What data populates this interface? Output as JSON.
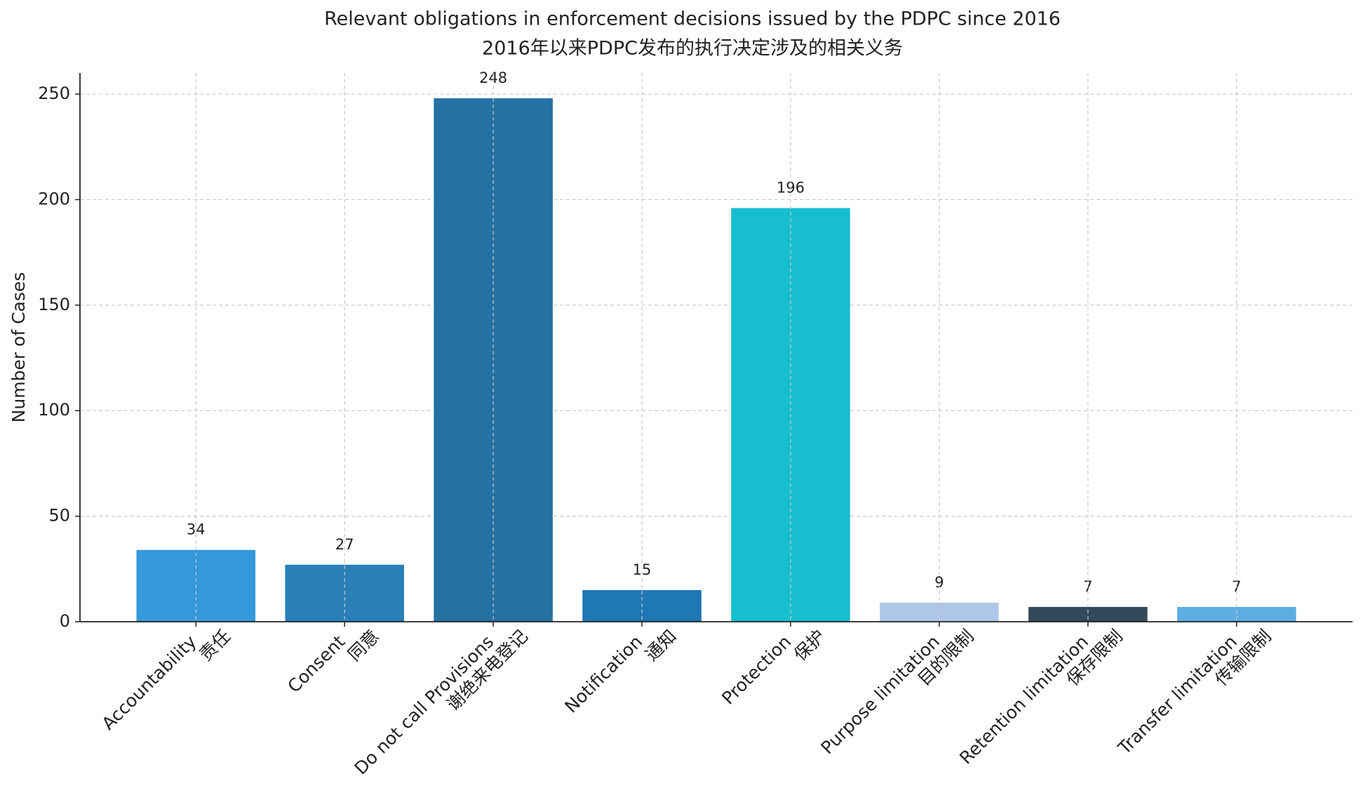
{
  "chart_data": {
    "type": "bar",
    "title": "Relevant obligations in enforcement decisions issued by the PDPC since 2016",
    "subtitle": "2016年以来PDPC发布的执行决定涉及的相关义务",
    "y_label": "Number of Cases",
    "categories": [
      "Accountability\n责任",
      "Consent\n同意",
      "Do not call Provisions\n谢绝来电登记",
      "Notification\n通知",
      "Protection\n保护",
      "Purpose limitation\n目的限制",
      "Retention limitation\n保存限制",
      "Transfer limitation\n传输限制"
    ],
    "values": [
      34,
      27,
      248,
      15,
      196,
      9,
      7,
      7
    ],
    "colors": [
      "#3498db",
      "#2980b9",
      "#2471a3",
      "#1f77b4",
      "#17becf",
      "#aec7e8",
      "#34495e",
      "#5dade2"
    ],
    "ylim": [
      0,
      260
    ],
    "yticks": [
      0,
      50,
      100,
      150,
      200,
      250
    ],
    "grid": true
  }
}
